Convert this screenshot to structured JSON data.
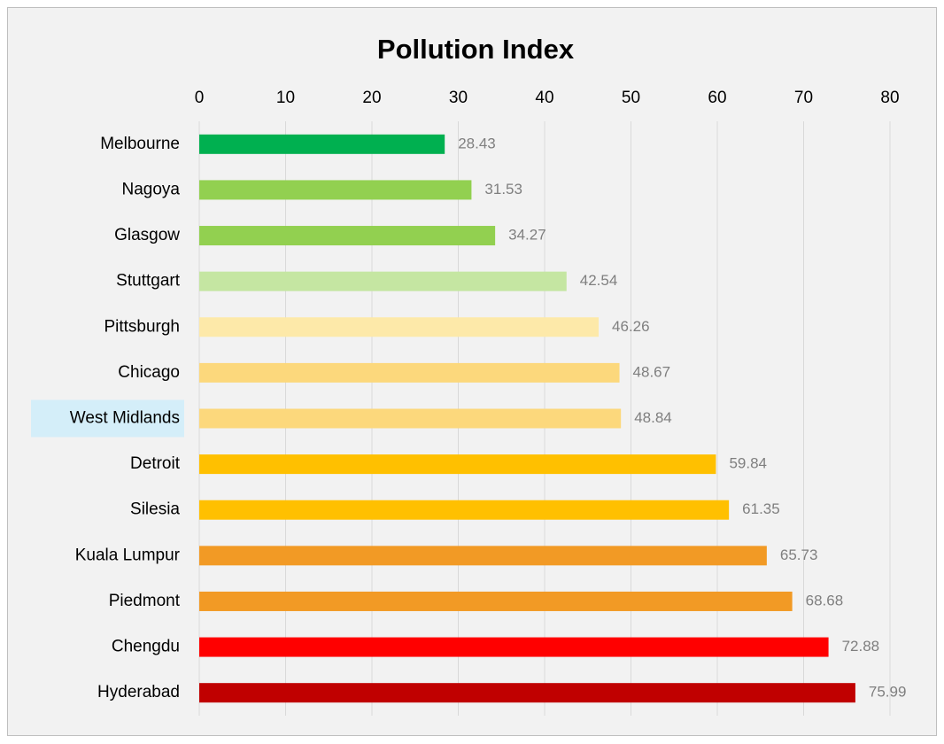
{
  "chart_data": {
    "type": "barh",
    "title": "Pollution Index",
    "categories": [
      "Melbourne",
      "Nagoya",
      "Glasgow",
      "Stuttgart",
      "Pittsburgh",
      "Chicago",
      "West Midlands",
      "Detroit",
      "Silesia",
      "Kuala Lumpur",
      "Piedmont",
      "Chengdu",
      "Hyderabad"
    ],
    "values": [
      28.43,
      31.53,
      34.27,
      42.54,
      46.26,
      48.67,
      48.84,
      59.84,
      61.35,
      65.73,
      68.68,
      72.88,
      75.99
    ],
    "colors": [
      "#00b050",
      "#92d050",
      "#92d050",
      "#c5e6a2",
      "#fde9a9",
      "#fcd87c",
      "#fcd87c",
      "#ffc000",
      "#ffc000",
      "#f29a25",
      "#f29a25",
      "#ff0000",
      "#c00000"
    ],
    "xlim": [
      0,
      80
    ],
    "xticks": [
      0,
      10,
      20,
      30,
      40,
      50,
      60,
      70,
      80
    ],
    "grid": true,
    "highlight": 6,
    "highlight_color": "#d4eef9"
  }
}
